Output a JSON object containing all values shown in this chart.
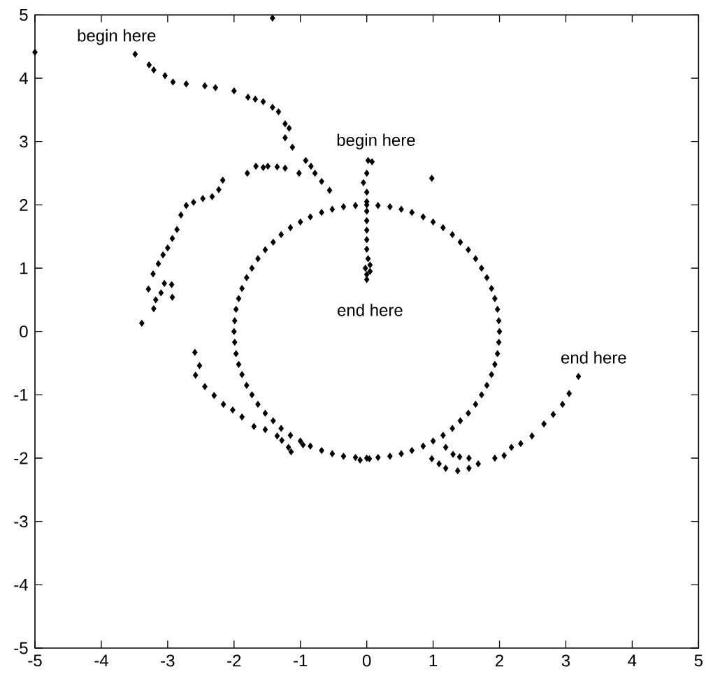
{
  "chart_data": {
    "type": "scatter",
    "marker": "diamond",
    "grid": false,
    "xlim": [
      -5,
      5
    ],
    "ylim": [
      -5,
      5
    ],
    "xticks": [
      -5,
      -4,
      -3,
      -2,
      -1,
      0,
      1,
      2,
      3,
      4,
      5
    ],
    "yticks": [
      -5,
      -4,
      -3,
      -2,
      -1,
      0,
      1,
      2,
      3,
      4,
      5
    ],
    "annotations": [
      "begin here",
      "begin here",
      "end here",
      "end here"
    ],
    "series": [
      {
        "color": "#000000",
        "x": [
          2,
          1.99,
          1.97,
          1.93,
          1.88,
          1.81,
          1.73,
          1.64,
          1.53,
          1.41,
          1.29,
          1.15,
          1,
          0.85,
          0.68,
          0.52,
          0.35,
          0.17,
          0,
          -0.17,
          -0.35,
          -0.52,
          -0.68,
          -0.85,
          -1,
          -1.15,
          -1.29,
          -1.41,
          -1.53,
          -1.64,
          -1.73,
          -1.81,
          -1.88,
          -1.93,
          -1.97,
          -1.99,
          -2,
          -1.99,
          -1.97,
          -1.93,
          -1.88,
          -1.81,
          -1.73,
          -1.64,
          -1.53,
          -1.41,
          -1.29,
          -1.15,
          -1,
          -0.85,
          -0.68,
          -0.52,
          -0.35,
          -0.17,
          0,
          0.17,
          0.35,
          0.52,
          0.68,
          0.85,
          1,
          1.15,
          1.29,
          1.41,
          1.53,
          1.64,
          1.73,
          1.81,
          1.88,
          1.93,
          1.97,
          1.99
        ],
        "values": [
          0,
          0.17,
          0.35,
          0.52,
          0.68,
          0.85,
          1,
          1.15,
          1.29,
          1.41,
          1.53,
          1.64,
          1.73,
          1.81,
          1.88,
          1.93,
          1.97,
          1.99,
          2,
          1.99,
          1.97,
          1.93,
          1.88,
          1.81,
          1.73,
          1.64,
          1.53,
          1.41,
          1.29,
          1.15,
          1,
          0.85,
          0.68,
          0.52,
          0.35,
          0.17,
          0,
          -0.17,
          -0.35,
          -0.52,
          -0.68,
          -0.85,
          -1,
          -1.15,
          -1.29,
          -1.41,
          -1.53,
          -1.64,
          -1.73,
          -1.81,
          -1.88,
          -1.93,
          -1.97,
          -1.99,
          -2,
          -1.99,
          -1.97,
          -1.93,
          -1.88,
          -1.81,
          -1.73,
          -1.64,
          -1.53,
          -1.41,
          -1.29,
          -1.15,
          -1,
          -0.85,
          -0.68,
          -0.52,
          -0.35,
          -0.17
        ]
      },
      {
        "color": "#000000",
        "x": [
          -5.0,
          -1.42,
          -3.49,
          -3.28,
          -3.21,
          -3.04,
          -2.92,
          -2.72,
          -2.44,
          -2.28,
          -2.0,
          -1.79,
          -1.68,
          -1.56,
          -1.42,
          -1.33,
          -1.23,
          -1.17,
          -1.23,
          -1.12,
          -0.92,
          -0.84,
          -0.78,
          -0.68,
          -0.56
        ],
        "values": [
          4.41,
          4.95,
          4.38,
          4.21,
          4.13,
          4.04,
          3.94,
          3.91,
          3.88,
          3.85,
          3.8,
          3.7,
          3.67,
          3.63,
          3.54,
          3.47,
          3.28,
          3.21,
          3.06,
          2.91,
          2.7,
          2.61,
          2.5,
          2.37,
          2.23
        ]
      },
      {
        "color": "#000000",
        "x": [
          -3.39,
          -3.21,
          -3.18,
          -3.29,
          -3.1,
          -3.05,
          -2.93,
          -2.94,
          -3.22,
          -3.14,
          -3.07,
          -3.0,
          -2.93,
          -2.86,
          -2.8,
          -2.72,
          -2.61,
          -2.47,
          -2.33,
          -2.23,
          -2.17,
          -1.8,
          -1.67,
          -1.56,
          -1.49,
          -1.35,
          -1.23,
          -1.02
        ],
        "values": [
          0.13,
          0.36,
          0.5,
          0.67,
          0.61,
          0.76,
          0.54,
          0.74,
          0.91,
          1.07,
          1.21,
          1.32,
          1.47,
          1.61,
          1.84,
          1.99,
          2.04,
          2.1,
          2.13,
          2.24,
          2.39,
          2.5,
          2.61,
          2.59,
          2.61,
          2.6,
          2.58,
          2.5
        ]
      },
      {
        "color": "#000000",
        "x": [
          0.02,
          0.08,
          0.0,
          -0.05,
          0.0,
          0.0,
          0.0,
          0.0,
          0.0,
          0.0,
          0.0,
          0.02,
          0.05,
          -0.02,
          0.05,
          0.0,
          0.0,
          0.98
        ],
        "values": [
          2.7,
          2.68,
          2.5,
          2.35,
          2.2,
          2.05,
          1.9,
          1.75,
          1.6,
          1.45,
          1.3,
          1.15,
          1.05,
          1.0,
          0.95,
          0.9,
          0.82,
          2.42
        ]
      },
      {
        "color": "#000000",
        "x": [
          -2.59,
          -2.52,
          -2.58,
          -2.44,
          -2.3,
          -2.16,
          -2.02,
          -1.88,
          -1.7,
          -1.53,
          -1.35,
          -1.28,
          -1.18,
          -1.14,
          -0.96,
          -0.1,
          0.04
        ],
        "values": [
          -0.33,
          -0.54,
          -0.69,
          -0.87,
          -1.01,
          -1.15,
          -1.24,
          -1.35,
          -1.5,
          -1.55,
          -1.65,
          -1.72,
          -1.83,
          -1.9,
          -1.79,
          -2.03,
          -2.01
        ]
      },
      {
        "color": "#000000",
        "x": [
          0.98,
          1.09,
          1.19,
          1.3,
          1.4,
          1.54,
          1.19,
          1.37,
          1.54,
          1.68,
          1.93,
          2.07,
          2.18,
          2.32,
          2.49,
          2.67,
          2.81,
          2.95,
          3.05,
          3.19
        ],
        "values": [
          -2.01,
          -2.09,
          -1.83,
          -1.94,
          -1.98,
          -2.0,
          -2.16,
          -2.2,
          -2.16,
          -2.09,
          -2.0,
          -1.96,
          -1.83,
          -1.77,
          -1.65,
          -1.46,
          -1.31,
          -1.15,
          -0.98,
          -0.71
        ]
      }
    ]
  }
}
